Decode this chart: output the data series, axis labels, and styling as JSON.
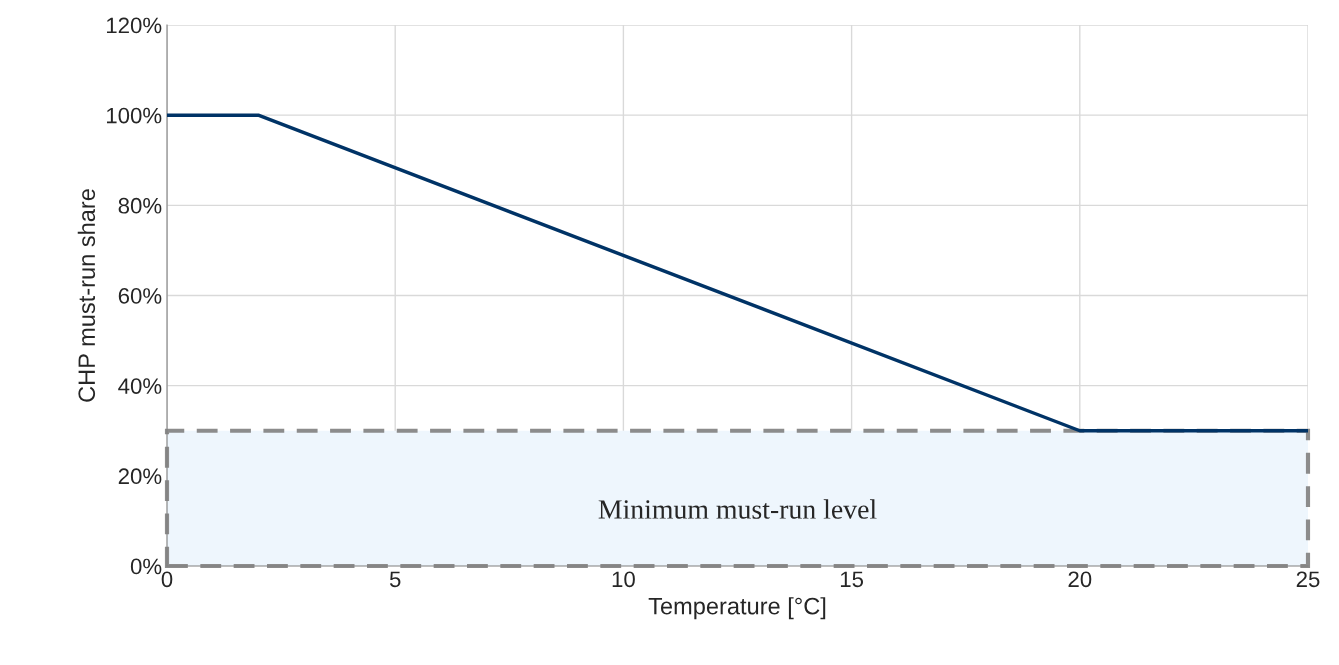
{
  "chart_data": {
    "type": "line",
    "xlabel": "Temperature [°C]",
    "ylabel": "CHP must-run share",
    "x": [
      0,
      2,
      20,
      25
    ],
    "series": [
      {
        "color": "#003366",
        "values": [
          100,
          100,
          30,
          30
        ]
      }
    ],
    "xlim": [
      0,
      25
    ],
    "xticks": [
      0,
      5,
      10,
      15,
      20,
      25
    ],
    "ylim": [
      0,
      120
    ],
    "yticks": [
      {
        "value": 0,
        "label": "0%"
      },
      {
        "value": 20,
        "label": "20%"
      },
      {
        "value": 40,
        "label": "40%"
      },
      {
        "value": 60,
        "label": "60%"
      },
      {
        "value": 80,
        "label": "80%"
      },
      {
        "value": 100,
        "label": "100%"
      },
      {
        "value": 120,
        "label": "120%"
      }
    ],
    "bands": [
      {
        "axis": "y",
        "from": 0,
        "to": 30,
        "label": "Minimum must-run level",
        "color": "#eef6fd"
      }
    ],
    "grid": true,
    "legend": false,
    "marker": "none",
    "line_style": "solid"
  }
}
